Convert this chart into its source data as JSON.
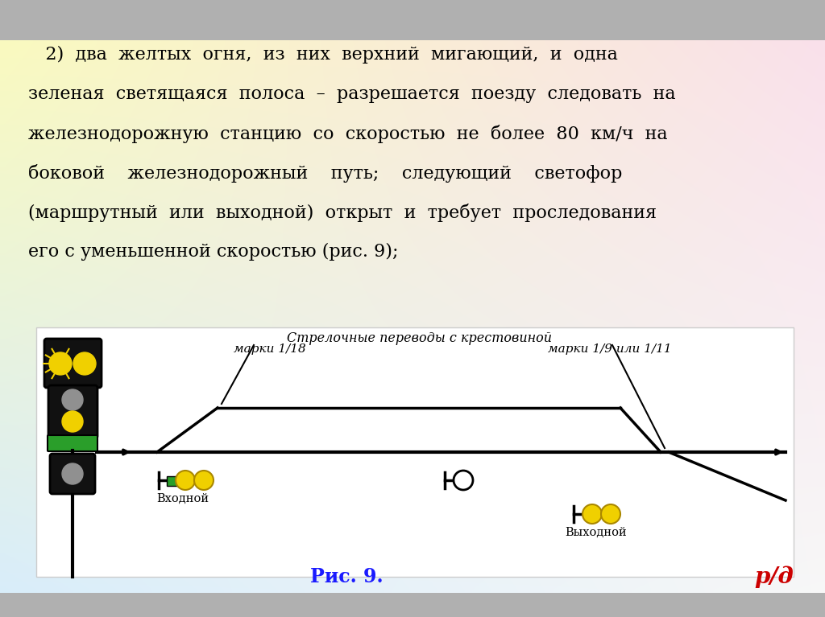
{
  "bg_color": "#b0b0b0",
  "white_area_color": "#ffffff",
  "caption": "Рис. 9.",
  "caption_color": "#1a1aff",
  "rzd_text": "р/д",
  "rzd_color": "#cc0000",
  "yellow_color": "#f0d000",
  "green_color": "#2a9e2a",
  "dark_color": "#111111",
  "gray_color": "#909090",
  "diagram_label_strelka": "Стрелочные переводы с крестовиной",
  "diagram_label_18": "марки 1/18",
  "diagram_label_911": "марки 1/9 или 1/11",
  "diagram_label_vhod": "Входной",
  "diagram_label_vyhod": "Выходной",
  "grad_tl": [
    0.98,
    0.98,
    0.75
  ],
  "grad_tr": [
    0.98,
    0.88,
    0.92
  ],
  "grad_bl": [
    0.85,
    0.93,
    0.98
  ],
  "grad_br": [
    0.97,
    0.97,
    0.97
  ],
  "text_line1": "   2)  два  желтых  огня,  из  них  верхний  мигающий,  и  одна",
  "text_line2": "зеленая  светящаяся  полоса  –  разрешается  поезду  следовать  на",
  "text_line3": "железнодорожную  станцию  со  скоростью  не  более  80  км/ч  на",
  "text_line4": "боковой    железнодорожный    путь;    следующий    светофор",
  "text_line5": "(маршрутный  или  выходной)  открыт  и  требует  проследования",
  "text_line6": "его с уменьшенной скоростью (рис. 9);"
}
